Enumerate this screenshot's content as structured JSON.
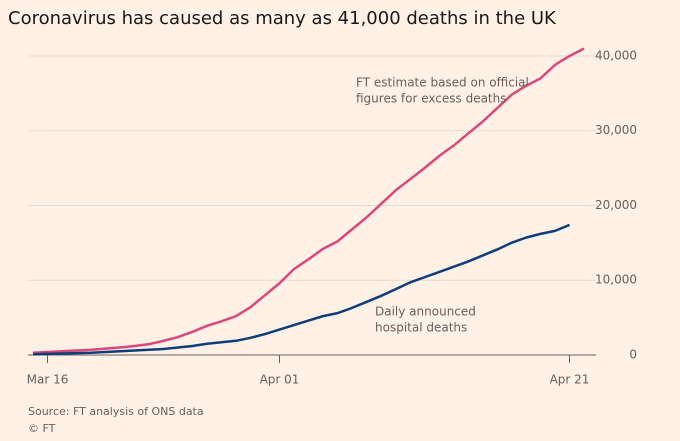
{
  "chart_data": {
    "type": "line",
    "title": "Coronavirus has caused as many as 41,000 deaths in the UK",
    "categories": [
      null,
      "Mar 16",
      null,
      null,
      null,
      null,
      null,
      null,
      null,
      null,
      null,
      null,
      null,
      null,
      null,
      null,
      null,
      "Apr 01",
      null,
      null,
      null,
      null,
      null,
      null,
      null,
      null,
      null,
      null,
      null,
      null,
      null,
      null,
      null,
      null,
      null,
      null,
      null,
      "Apr 21",
      null
    ],
    "series": [
      {
        "name": "FT estimate based on official figures for excess deaths",
        "color": "#d9477b",
        "values": [
          300,
          400,
          500,
          600,
          700,
          850,
          1000,
          1200,
          1450,
          1900,
          2400,
          3100,
          3900,
          4500,
          5200,
          6400,
          8000,
          9600,
          11500,
          12800,
          14200,
          15200,
          16800,
          18400,
          20200,
          22000,
          23500,
          25000,
          26600,
          28000,
          29600,
          31200,
          33000,
          34800,
          36000,
          37000,
          38800,
          40000,
          41000
        ]
      },
      {
        "name": "Daily announced hospital deaths",
        "color": "#0f3d7a",
        "values": [
          100,
          150,
          200,
          250,
          300,
          400,
          500,
          600,
          700,
          800,
          1000,
          1200,
          1500,
          1700,
          1900,
          2300,
          2800,
          3400,
          4000,
          4600,
          5200,
          5600,
          6300,
          7100,
          7900,
          8800,
          9700,
          10400,
          11100,
          11800,
          12500,
          13300,
          14100,
          15000,
          15700,
          16200,
          16600,
          17400,
          null
        ]
      }
    ],
    "annotations": [
      [
        "FT estimate based on official",
        "figures for excess deaths"
      ],
      [
        "Daily announced",
        "hospital deaths"
      ]
    ],
    "ylim": [
      0,
      42000
    ],
    "yticks": [
      0,
      {
        "value": 10000,
        "label": "10,000"
      },
      {
        "value": 20000,
        "label": "20,000"
      },
      {
        "value": 30000,
        "label": "30,000"
      },
      {
        "value": 40000,
        "label": "40,000"
      }
    ],
    "grid": true,
    "source": "Source: FT analysis of ONS data",
    "credit": "© FT"
  }
}
